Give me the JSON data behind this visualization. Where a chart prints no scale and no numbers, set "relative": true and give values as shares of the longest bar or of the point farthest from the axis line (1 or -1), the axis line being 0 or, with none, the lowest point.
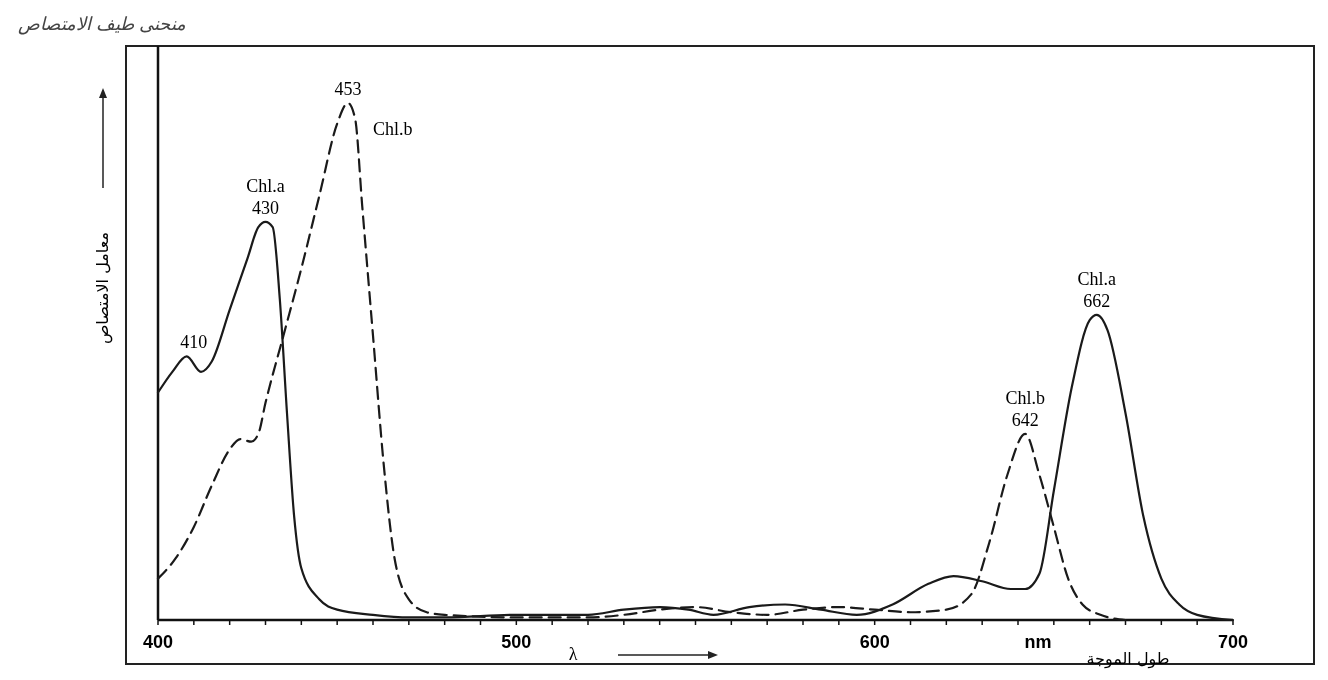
{
  "chart_data": {
    "type": "line",
    "relative": true,
    "title": "منحنى طيف الامتصاص",
    "ylabel": "معامل الامتصاص",
    "xlabel": "λ",
    "xlim": [
      400,
      700
    ],
    "xticks": [
      400,
      {
        "value": 410,
        "label": null
      },
      {
        "value": 420,
        "label": null
      },
      {
        "value": 430,
        "label": null
      },
      {
        "value": 440,
        "label": null
      },
      {
        "value": 450,
        "label": null
      },
      {
        "value": 460,
        "label": null
      },
      {
        "value": 470,
        "label": null
      },
      {
        "value": 480,
        "label": null
      },
      {
        "value": 490,
        "label": null
      },
      500,
      {
        "value": 510,
        "label": null
      },
      {
        "value": 520,
        "label": null
      },
      {
        "value": 530,
        "label": null
      },
      {
        "value": 540,
        "label": null
      },
      {
        "value": 550,
        "label": null
      },
      {
        "value": 560,
        "label": null
      },
      {
        "value": 570,
        "label": null
      },
      {
        "value": 580,
        "label": null
      },
      {
        "value": 590,
        "label": null
      },
      600,
      {
        "value": 610,
        "label": null
      },
      {
        "value": 620,
        "label": null
      },
      {
        "value": 630,
        "label": null
      },
      {
        "value": 640,
        "label": null
      },
      {
        "value": 650,
        "label": null
      },
      {
        "value": 660,
        "label": null
      },
      {
        "value": 670,
        "label": null
      },
      {
        "value": 680,
        "label": null
      },
      {
        "value": 690,
        "label": null
      },
      700
    ],
    "grid": false,
    "marker": "none",
    "series": [
      {
        "color": "#1a1a1a",
        "line_style": "solid",
        "x": [
          400,
          404,
          408,
          412,
          415,
          420,
          425,
          428,
          430,
          432,
          434,
          436,
          438,
          440,
          445,
          450,
          460,
          470,
          480,
          500,
          520,
          530,
          540,
          548,
          555,
          565,
          575,
          585,
          595,
          605,
          615,
          622,
          630,
          638,
          642,
          646,
          650,
          655,
          660,
          662,
          665,
          670,
          675,
          680,
          685,
          690,
          700
        ],
        "values": [
          0.44,
          0.48,
          0.51,
          0.48,
          0.5,
          0.6,
          0.7,
          0.76,
          0.77,
          0.76,
          0.62,
          0.4,
          0.2,
          0.1,
          0.04,
          0.02,
          0.01,
          0.005,
          0.005,
          0.01,
          0.01,
          0.02,
          0.025,
          0.02,
          0.01,
          0.025,
          0.03,
          0.02,
          0.01,
          0.03,
          0.07,
          0.085,
          0.075,
          0.06,
          0.06,
          0.09,
          0.25,
          0.45,
          0.58,
          0.59,
          0.56,
          0.4,
          0.2,
          0.08,
          0.03,
          0.01,
          0
        ]
      },
      {
        "color": "#1a1a1a",
        "line_style": "dashed",
        "x": [
          400,
          405,
          410,
          415,
          420,
          423,
          426,
          428,
          430,
          435,
          440,
          445,
          450,
          453,
          455,
          457,
          460,
          463,
          466,
          470,
          475,
          480,
          500,
          520,
          530,
          540,
          550,
          560,
          570,
          580,
          590,
          600,
          610,
          620,
          627,
          632,
          637,
          642,
          646,
          650,
          654,
          658,
          663,
          670
        ],
        "values": [
          0.08,
          0.12,
          0.18,
          0.26,
          0.33,
          0.35,
          0.345,
          0.36,
          0.42,
          0.55,
          0.68,
          0.82,
          0.96,
          1,
          0.97,
          0.8,
          0.55,
          0.3,
          0.12,
          0.04,
          0.015,
          0.01,
          0.005,
          0.005,
          0.01,
          0.02,
          0.025,
          0.015,
          0.01,
          0.02,
          0.025,
          0.02,
          0.015,
          0.02,
          0.05,
          0.15,
          0.28,
          0.36,
          0.28,
          0.18,
          0.08,
          0.03,
          0.01,
          0
        ]
      }
    ],
    "annotations": [
      {
        "text": "410",
        "x": 410,
        "y": 0.51
      },
      {
        "text": "430",
        "x": 430,
        "y": 0.77
      },
      {
        "text": "Chl.a",
        "x": 430,
        "y": 0.77
      },
      {
        "text": "453",
        "x": 453,
        "y": 1
      },
      "Chl.b",
      {
        "text": "642",
        "x": 642,
        "y": 0.36
      },
      {
        "text": "Chl.b",
        "x": 642,
        "y": 0.36
      },
      {
        "text": "662",
        "x": 662,
        "y": 0.59
      },
      {
        "text": "Chl.a",
        "x": 662,
        "y": 0.59
      },
      "nm",
      "طول الموجة"
    ]
  }
}
